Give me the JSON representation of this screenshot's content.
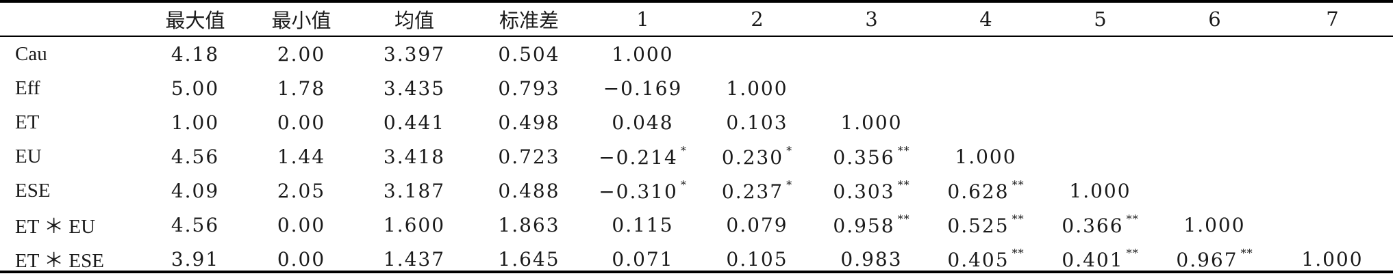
{
  "table": {
    "headers": [
      "",
      "最大值",
      "最小值",
      "均值",
      "标准差",
      "1",
      "2",
      "3",
      "4",
      "5",
      "6",
      "7"
    ],
    "rows": [
      {
        "label": "Cau",
        "max": "4.18",
        "min": "2.00",
        "mean": "3.397",
        "sd": "0.504",
        "corr": [
          {
            "v": "1.000",
            "s": ""
          }
        ]
      },
      {
        "label": "Eff",
        "max": "5.00",
        "min": "1.78",
        "mean": "3.435",
        "sd": "0.793",
        "corr": [
          {
            "v": "−0.169",
            "s": ""
          },
          {
            "v": "1.000",
            "s": ""
          }
        ]
      },
      {
        "label": "ET",
        "max": "1.00",
        "min": "0.00",
        "mean": "0.441",
        "sd": "0.498",
        "corr": [
          {
            "v": "0.048",
            "s": ""
          },
          {
            "v": "0.103",
            "s": ""
          },
          {
            "v": "1.000",
            "s": ""
          }
        ]
      },
      {
        "label": "EU",
        "max": "4.56",
        "min": "1.44",
        "mean": "3.418",
        "sd": "0.723",
        "corr": [
          {
            "v": "−0.214",
            "s": "*"
          },
          {
            "v": "0.230",
            "s": "*"
          },
          {
            "v": "0.356",
            "s": "**"
          },
          {
            "v": "1.000",
            "s": ""
          }
        ]
      },
      {
        "label": "ESE",
        "max": "4.09",
        "min": "2.05",
        "mean": "3.187",
        "sd": "0.488",
        "corr": [
          {
            "v": "−0.310",
            "s": "*"
          },
          {
            "v": "0.237",
            "s": "*"
          },
          {
            "v": "0.303",
            "s": "**"
          },
          {
            "v": "0.628",
            "s": "**"
          },
          {
            "v": "1.000",
            "s": ""
          }
        ]
      },
      {
        "label": "ET ＊ EU",
        "max": "4.56",
        "min": "0.00",
        "mean": "1.600",
        "sd": "1.863",
        "corr": [
          {
            "v": "0.115",
            "s": ""
          },
          {
            "v": "0.079",
            "s": ""
          },
          {
            "v": "0.958",
            "s": "**"
          },
          {
            "v": "0.525",
            "s": "**"
          },
          {
            "v": "0.366",
            "s": "**"
          },
          {
            "v": "1.000",
            "s": ""
          }
        ]
      },
      {
        "label": "ET ＊ ESE",
        "max": "3.91",
        "min": "0.00",
        "mean": "1.437",
        "sd": "1.645",
        "corr": [
          {
            "v": "0.071",
            "s": ""
          },
          {
            "v": "0.105",
            "s": ""
          },
          {
            "v": "0.983",
            "s": ""
          },
          {
            "v": "0.405",
            "s": "**"
          },
          {
            "v": "0.401",
            "s": "**"
          },
          {
            "v": "0.967",
            "s": "**"
          },
          {
            "v": "1.000",
            "s": ""
          }
        ]
      }
    ]
  }
}
